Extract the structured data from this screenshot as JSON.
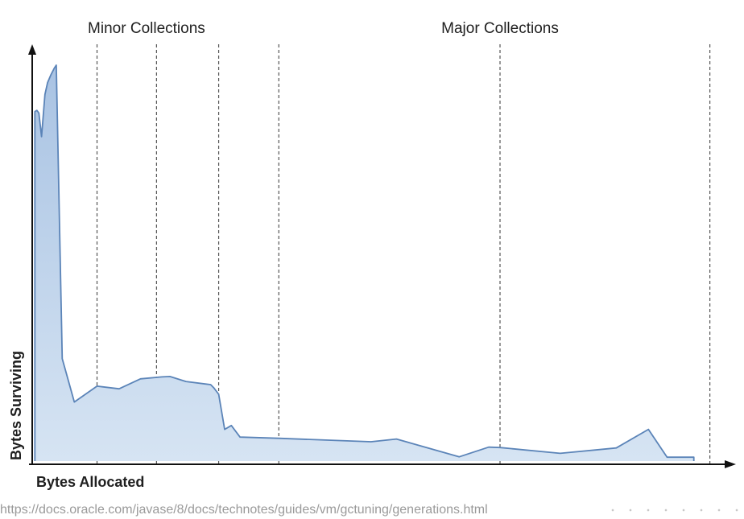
{
  "chart_data": {
    "type": "area",
    "title": "",
    "xlabel": "Bytes Allocated",
    "ylabel": "Bytes Surviving",
    "xlim": [
      0,
      100
    ],
    "ylim": [
      0,
      100
    ],
    "grid": false,
    "legend": "none",
    "regions": [
      {
        "label": "Minor Collections",
        "center": 17.1
      },
      {
        "label": "Major Collections",
        "center": 70.0
      }
    ],
    "collection_markers": [
      9.7,
      18.6,
      27.9,
      36.9,
      70.0,
      101.4
    ],
    "series": [
      {
        "x": [
          0.4,
          0.7,
          1.0,
          1.4,
          1.9,
          2.3,
          2.8,
          3.3,
          3.6,
          4.5,
          6.3,
          9.7,
          13.0,
          16.2,
          19.4,
          20.6,
          23.0,
          26.7,
          27.2,
          27.9,
          28.8,
          29.8,
          31.1,
          36.9,
          50.7,
          54.5,
          63.9,
          68.3,
          70.0,
          79.0,
          87.4,
          92.2,
          95.0,
          99.0
        ],
        "y": [
          90.5,
          90.8,
          90.1,
          84.0,
          94.9,
          98.0,
          100.0,
          101.7,
          102.5,
          26.5,
          15.3,
          19.4,
          18.7,
          21.3,
          21.8,
          21.9,
          20.6,
          19.8,
          18.9,
          17.3,
          8.2,
          9.2,
          6.2,
          5.9,
          5.0,
          5.7,
          1.1,
          3.6,
          3.5,
          2.0,
          3.4,
          8.2,
          1.0,
          1.0
        ]
      }
    ],
    "colors": {
      "area_fill_top": "#a9c3e3",
      "area_fill_bottom": "#d6e4f3",
      "area_stroke": "#5b84b8",
      "axis": "#111111",
      "marker": "#555555"
    }
  },
  "source": {
    "url": "https://docs.oracle.com/javase/8/docs/technotes/guides/vm/gctuning/generations.html"
  }
}
